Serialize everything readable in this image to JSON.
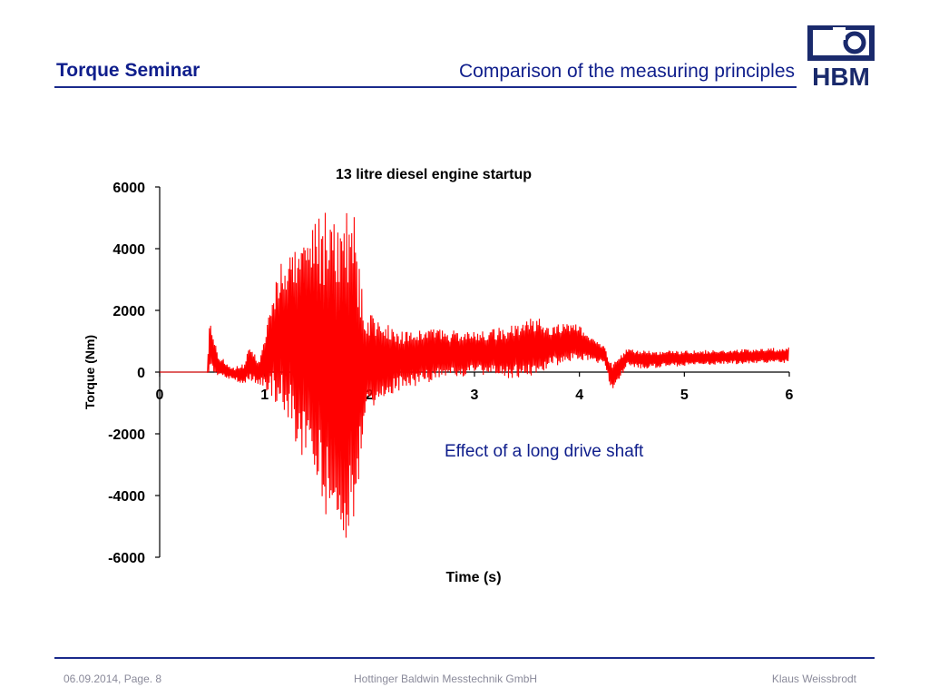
{
  "header": {
    "title": "Torque Seminar",
    "subtitle": "Comparison of the measuring principles",
    "logo_text": "HBM"
  },
  "chart_data": {
    "type": "line",
    "title": "13 litre diesel engine startup",
    "xlabel": "Time (s)",
    "ylabel": "Torque (Nm)",
    "xlim": [
      0,
      6
    ],
    "ylim": [
      -6000,
      6000
    ],
    "x_ticks": [
      0,
      1,
      2,
      3,
      4,
      5,
      6
    ],
    "y_ticks": [
      6000,
      4000,
      2000,
      0,
      -2000,
      -4000,
      -6000
    ],
    "annotation": "Effect of a long drive shaft",
    "series": [
      {
        "color": "#ff0000",
        "envelope": [
          {
            "t": 0.0,
            "min": 0,
            "max": 0
          },
          {
            "t": 0.45,
            "min": 0,
            "max": 0
          },
          {
            "t": 0.48,
            "min": -100,
            "max": 1800
          },
          {
            "t": 0.55,
            "min": -200,
            "max": 600
          },
          {
            "t": 0.7,
            "min": -250,
            "max": 150
          },
          {
            "t": 0.8,
            "min": -400,
            "max": 300
          },
          {
            "t": 0.85,
            "min": -300,
            "max": 800
          },
          {
            "t": 0.95,
            "min": -400,
            "max": 400
          },
          {
            "t": 1.05,
            "min": -700,
            "max": 2100
          },
          {
            "t": 1.15,
            "min": -1200,
            "max": 3600
          },
          {
            "t": 1.25,
            "min": -1800,
            "max": 3900
          },
          {
            "t": 1.35,
            "min": -2800,
            "max": 4800
          },
          {
            "t": 1.45,
            "min": -3200,
            "max": 4800
          },
          {
            "t": 1.55,
            "min": -4500,
            "max": 5200
          },
          {
            "t": 1.65,
            "min": -5400,
            "max": 5300
          },
          {
            "t": 1.75,
            "min": -5400,
            "max": 5200
          },
          {
            "t": 1.85,
            "min": -5400,
            "max": 5300
          },
          {
            "t": 1.95,
            "min": -1600,
            "max": 2000
          },
          {
            "t": 2.1,
            "min": -900,
            "max": 1700
          },
          {
            "t": 2.3,
            "min": -600,
            "max": 1400
          },
          {
            "t": 2.6,
            "min": -300,
            "max": 1400
          },
          {
            "t": 3.0,
            "min": -100,
            "max": 1300
          },
          {
            "t": 3.3,
            "min": -200,
            "max": 1500
          },
          {
            "t": 3.6,
            "min": -200,
            "max": 1800
          },
          {
            "t": 3.75,
            "min": 200,
            "max": 1500
          },
          {
            "t": 3.95,
            "min": 300,
            "max": 1700
          },
          {
            "t": 4.1,
            "min": 400,
            "max": 1200
          },
          {
            "t": 4.25,
            "min": 200,
            "max": 800
          },
          {
            "t": 4.3,
            "min": -600,
            "max": 300
          },
          {
            "t": 4.35,
            "min": -500,
            "max": 400
          },
          {
            "t": 4.45,
            "min": 200,
            "max": 800
          },
          {
            "t": 4.6,
            "min": 100,
            "max": 700
          },
          {
            "t": 5.0,
            "min": 200,
            "max": 700
          },
          {
            "t": 6.0,
            "min": 300,
            "max": 800
          }
        ]
      }
    ]
  },
  "footer": {
    "date_page": "06.09.2014, Page. 8",
    "company": "Hottinger Baldwin Messtechnik GmbH",
    "author": "Klaus Weissbrodt"
  }
}
